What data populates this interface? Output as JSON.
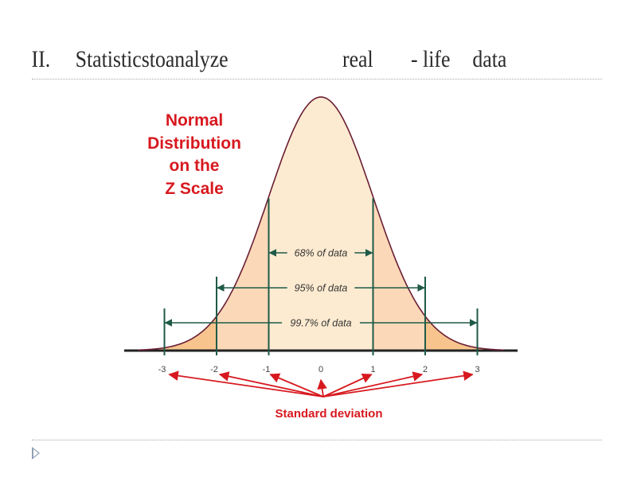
{
  "slide": {
    "title": {
      "numeral": "II.",
      "part1": "Statisticstoanalyze",
      "part2": "real",
      "part3": "- life",
      "part4": "data"
    }
  },
  "diagram": {
    "heading": [
      "Normal",
      "Distribution",
      "on the",
      "Z Scale"
    ],
    "ranges": [
      {
        "label": "68% of data",
        "from": -1,
        "to": 1
      },
      {
        "label": "95% of data",
        "from": -2,
        "to": 2
      },
      {
        "label": "99.7% of data",
        "from": -3,
        "to": 3
      }
    ],
    "ticks": [
      "-3",
      "-2",
      "-1",
      "0",
      "1",
      "2",
      "3"
    ],
    "caption": "Standard deviation",
    "colors": {
      "curve": "#6a1e33",
      "fill_center": "#fdebd1",
      "fill_middle": "#fbd9b8",
      "fill_tail": "#f7c48e",
      "guide": "#1f5a48",
      "accent": "#d7191f",
      "axis": "#222222"
    }
  }
}
